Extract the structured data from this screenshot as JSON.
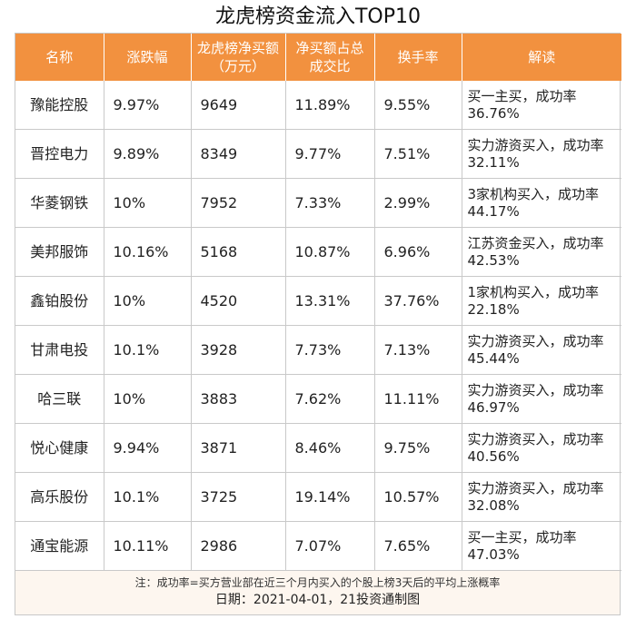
{
  "title": "龙虎榜资金流入TOP10",
  "columns": [
    "名称",
    "涨跌幅",
    "龙虎榜净买额（万元）",
    "净买额占总成交比",
    "换手率",
    "解读"
  ],
  "rows": [
    {
      "name": "豫能控股",
      "change": "9.97%",
      "net_buy": "9649",
      "ratio": "11.89%",
      "turnover": "9.55%",
      "note": "买一主买，成功率36.76%"
    },
    {
      "name": "晋控电力",
      "change": "9.89%",
      "net_buy": "8349",
      "ratio": "9.77%",
      "turnover": "7.51%",
      "note": "实力游资买入，成功率32.11%"
    },
    {
      "name": "华菱钢铁",
      "change": "10%",
      "net_buy": "7952",
      "ratio": "7.33%",
      "turnover": "2.99%",
      "note": "3家机构买入，成功率44.17%"
    },
    {
      "name": "美邦服饰",
      "change": "10.16%",
      "net_buy": "5168",
      "ratio": "10.87%",
      "turnover": "6.96%",
      "note": "江苏资金买入，成功率42.53%"
    },
    {
      "name": "鑫铂股份",
      "change": "10%",
      "net_buy": "4520",
      "ratio": "13.31%",
      "turnover": "37.76%",
      "note": "1家机构买入，成功率22.18%"
    },
    {
      "name": "甘肃电投",
      "change": "10.1%",
      "net_buy": "3928",
      "ratio": "7.73%",
      "turnover": "7.13%",
      "note": "实力游资买入，成功率45.44%"
    },
    {
      "name": "哈三联",
      "change": "10%",
      "net_buy": "3883",
      "ratio": "7.62%",
      "turnover": "11.11%",
      "note": "实力游资买入，成功率46.97%"
    },
    {
      "name": "悦心健康",
      "change": "9.94%",
      "net_buy": "3871",
      "ratio": "8.46%",
      "turnover": "9.75%",
      "note": "实力游资买入，成功率40.56%"
    },
    {
      "name": "高乐股份",
      "change": "10.1%",
      "net_buy": "3725",
      "ratio": "19.14%",
      "turnover": "10.57%",
      "note": "实力游资买入，成功率32.08%"
    },
    {
      "name": "通宝能源",
      "change": "10.11%",
      "net_buy": "2986",
      "ratio": "7.07%",
      "turnover": "7.65%",
      "note": "买一主买，成功率47.03%"
    }
  ],
  "footnote": "注：成功率=买方营业部在近三个月内买入的个股上榜3天后的平均上涨概率",
  "date_line": "日期：2021-04-01，21投资通制图",
  "colors": {
    "header_bg": "#f2913f",
    "header_text": "#ffffff",
    "grid": "#c9c9c9"
  }
}
